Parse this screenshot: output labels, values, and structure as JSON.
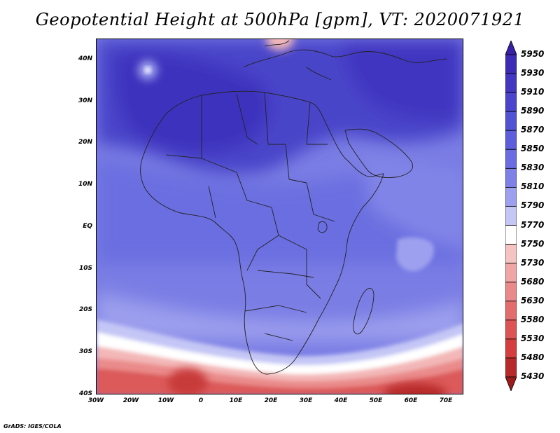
{
  "title": "Geopotential Height at 500hPa [gpm], VT: 2020071921",
  "credit": "GrADS: IGES/COLA",
  "map": {
    "lat_labels": [
      "40N",
      "30N",
      "20N",
      "10N",
      "EQ",
      "10S",
      "20S",
      "30S",
      "40S"
    ],
    "lon_labels": [
      "30W",
      "20W",
      "10W",
      "0",
      "10E",
      "20E",
      "30E",
      "40E",
      "50E",
      "60E",
      "70E"
    ],
    "extent": {
      "lon_min": -30,
      "lon_max": 75,
      "lat_min": -40,
      "lat_max": 45
    }
  },
  "colorbar": {
    "levels": [
      "5950",
      "5930",
      "5910",
      "5890",
      "5870",
      "5850",
      "5830",
      "5810",
      "5790",
      "5770",
      "5750",
      "5730",
      "5680",
      "5630",
      "5580",
      "5530",
      "5480",
      "5430"
    ],
    "colors": [
      "#3a1fa8",
      "#3d2ab5",
      "#4337c2",
      "#4a45cc",
      "#5252d4",
      "#5c5edb",
      "#6a6de1",
      "#7d80e6",
      "#9da0ee",
      "#c4c6f5",
      "#ffffff",
      "#f6c3c3",
      "#f0a6a6",
      "#ea8989",
      "#e36d6d",
      "#dc5454",
      "#d43e3e",
      "#b82929",
      "#9c1c1c"
    ]
  }
}
